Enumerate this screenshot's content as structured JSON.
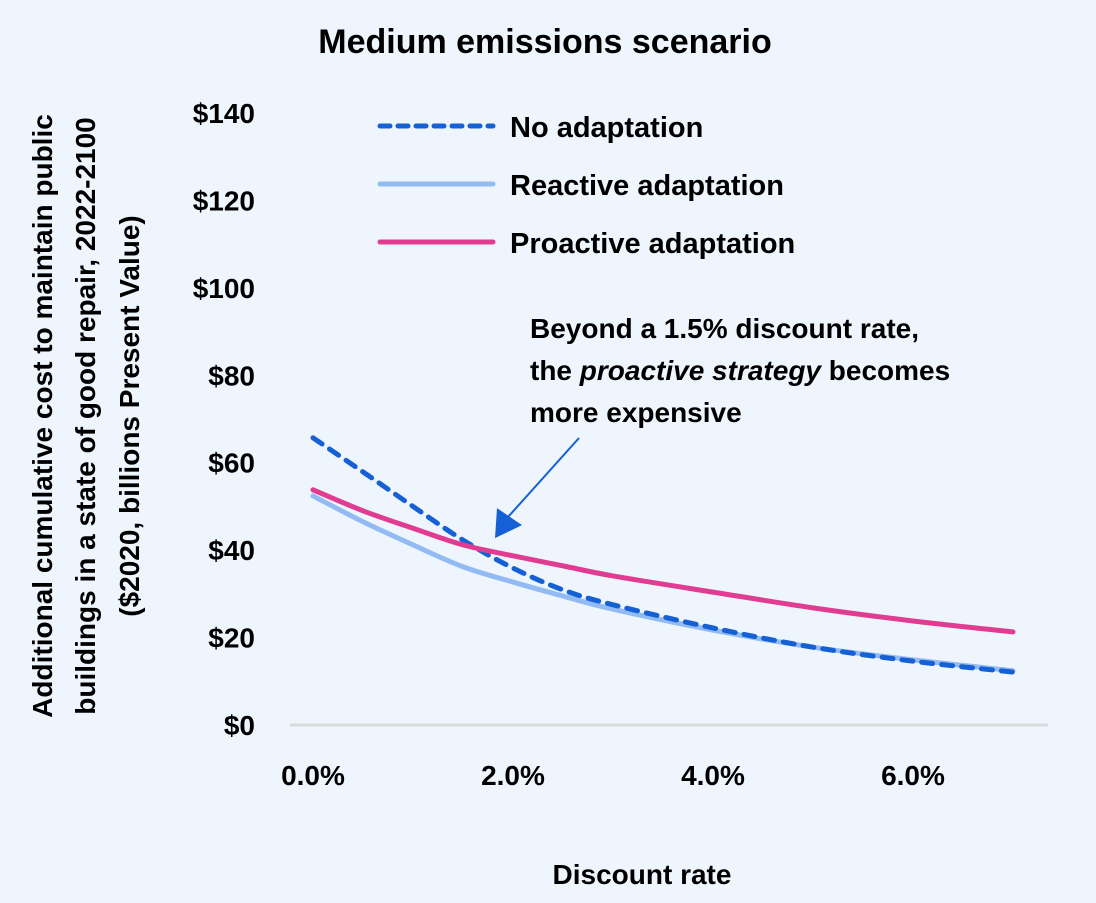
{
  "chart_data": {
    "type": "line",
    "title": "Medium emissions scenario",
    "xlabel": "Discount rate",
    "ylabel_lines": [
      "Additional cumulative cost to maintain public",
      "buildings in a state of good repair, 2022-2100",
      "($2020, billions Present Value)"
    ],
    "xlim": [
      0,
      7
    ],
    "ylim": [
      0,
      140
    ],
    "x_ticks": [
      0,
      2,
      4,
      6
    ],
    "x_tick_labels": [
      "0.0%",
      "2.0%",
      "4.0%",
      "6.0%"
    ],
    "y_ticks": [
      0,
      20,
      40,
      60,
      80,
      100,
      120,
      140
    ],
    "y_tick_labels": [
      "$0",
      "$20",
      "$40",
      "$60",
      "$80",
      "$100",
      "$120",
      "$140"
    ],
    "grid": false,
    "legend_position": "top-center",
    "x": [
      0,
      0.5,
      1,
      1.5,
      2,
      2.5,
      3,
      4,
      5,
      6,
      7
    ],
    "series": [
      {
        "name": "No adaptation",
        "color": "#1560d4",
        "style": "dashed",
        "values": [
          65.7,
          57.9,
          50.0,
          42.3,
          35.9,
          30.9,
          27.5,
          22.2,
          17.8,
          14.6,
          12.1
        ]
      },
      {
        "name": "Reactive adaptation",
        "color": "#93bbf3",
        "style": "solid",
        "values": [
          52.4,
          46.5,
          41.2,
          36.2,
          32.7,
          29.5,
          26.5,
          21.7,
          17.8,
          14.9,
          12.4
        ]
      },
      {
        "name": "Proactive adaptation",
        "color": "#e03d92",
        "style": "solid",
        "values": [
          53.8,
          49.0,
          45.0,
          41.2,
          38.7,
          36.4,
          34.1,
          30.4,
          26.8,
          23.8,
          21.3
        ]
      }
    ],
    "annotation": {
      "lines": [
        [
          "Beyond a 1.5% discount rate,"
        ],
        [
          "the ",
          "proactive strategy",
          " becomes"
        ],
        [
          "more expensive"
        ]
      ],
      "italic_segment": "proactive strategy",
      "arrow_color": "#1560d4",
      "points_to": {
        "x": 1.8,
        "y": 40
      }
    },
    "axis_color": "#d9d9d9"
  }
}
